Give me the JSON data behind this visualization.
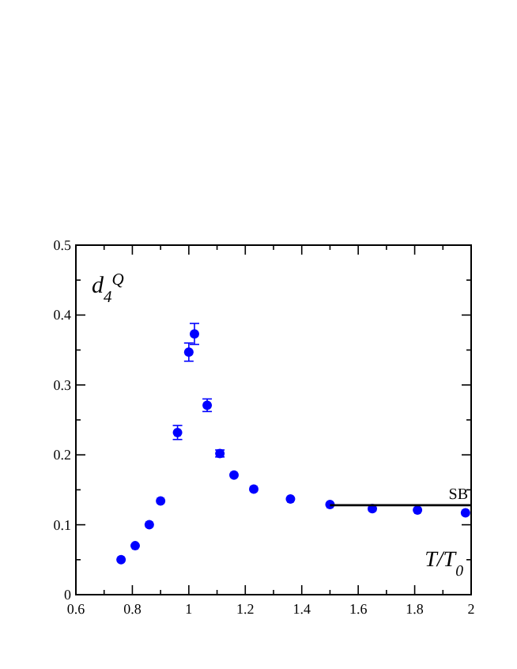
{
  "chart_data": {
    "type": "scatter",
    "xlabel": "T/T$_{0}$",
    "ylabel": "d$_{4}$$^{Q}$",
    "xlim": [
      0.6,
      2
    ],
    "ylim": [
      0,
      0.5
    ],
    "xticks": [
      0.6,
      {
        "value": 0.7,
        "label": null
      },
      0.8,
      {
        "value": 0.9,
        "label": null
      },
      1,
      {
        "value": 1.1,
        "label": null
      },
      1.2,
      {
        "value": 1.3,
        "label": null
      },
      1.4,
      {
        "value": 1.5,
        "label": null
      },
      1.6,
      {
        "value": 1.7,
        "label": null
      },
      1.8,
      {
        "value": 1.9,
        "label": null
      },
      2
    ],
    "yticks": [
      0,
      {
        "value": 0.05,
        "label": null
      },
      0.1,
      {
        "value": 0.15,
        "label": null
      },
      0.2,
      {
        "value": 0.25,
        "label": null
      },
      0.3,
      {
        "value": 0.35,
        "label": null
      },
      0.4,
      {
        "value": 0.45,
        "label": null
      },
      0.5
    ],
    "marker": "circle",
    "grid": false,
    "series": [
      {
        "color": "#0000ff",
        "x": [
          0.76,
          0.81,
          0.86,
          0.9,
          0.96,
          1.0,
          1.02,
          1.065,
          1.11,
          1.16,
          1.23,
          1.36,
          1.5,
          1.65,
          1.81,
          1.98
        ],
        "values": [
          0.05,
          0.07,
          0.1,
          0.134,
          0.232,
          0.347,
          0.373,
          0.271,
          0.202,
          0.171,
          0.151,
          0.137,
          0.129,
          0.123,
          0.121,
          0.117
        ],
        "errors": [
          null,
          null,
          null,
          null,
          0.01,
          0.013,
          0.015,
          0.009,
          0.005,
          null,
          null,
          null,
          null,
          null,
          null,
          null
        ]
      },
      {
        "type": "line",
        "name": "SB",
        "color": "#000000",
        "marker": "none",
        "x": [
          1.5,
          2
        ],
        "values": [
          0.128,
          0.128
        ]
      }
    ]
  }
}
